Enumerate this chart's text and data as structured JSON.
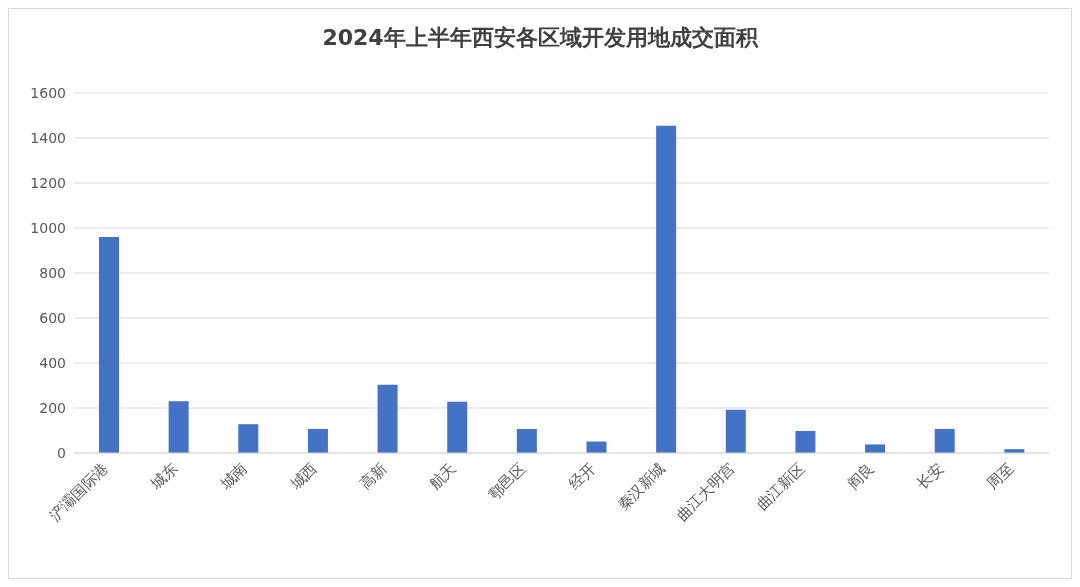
{
  "chart_data": {
    "type": "bar",
    "title": "2024年上半年西安各区域开发用地成交面积",
    "categories": [
      "浐灞国际港",
      "城东",
      "城南",
      "城西",
      "高新",
      "航天",
      "鄠邑区",
      "经开",
      "秦汉新城",
      "曲江大明宫",
      "曲江新区",
      "阎良",
      "长安",
      "周至"
    ],
    "values": [
      960,
      230,
      128,
      107,
      303,
      228,
      107,
      51,
      1455,
      192,
      98,
      38,
      107,
      17
    ],
    "color": "#4472c4",
    "ylim": [
      0,
      1600
    ],
    "yticks": [
      0,
      200,
      400,
      600,
      800,
      1000,
      1200,
      1400,
      1600
    ],
    "grid": "y"
  }
}
